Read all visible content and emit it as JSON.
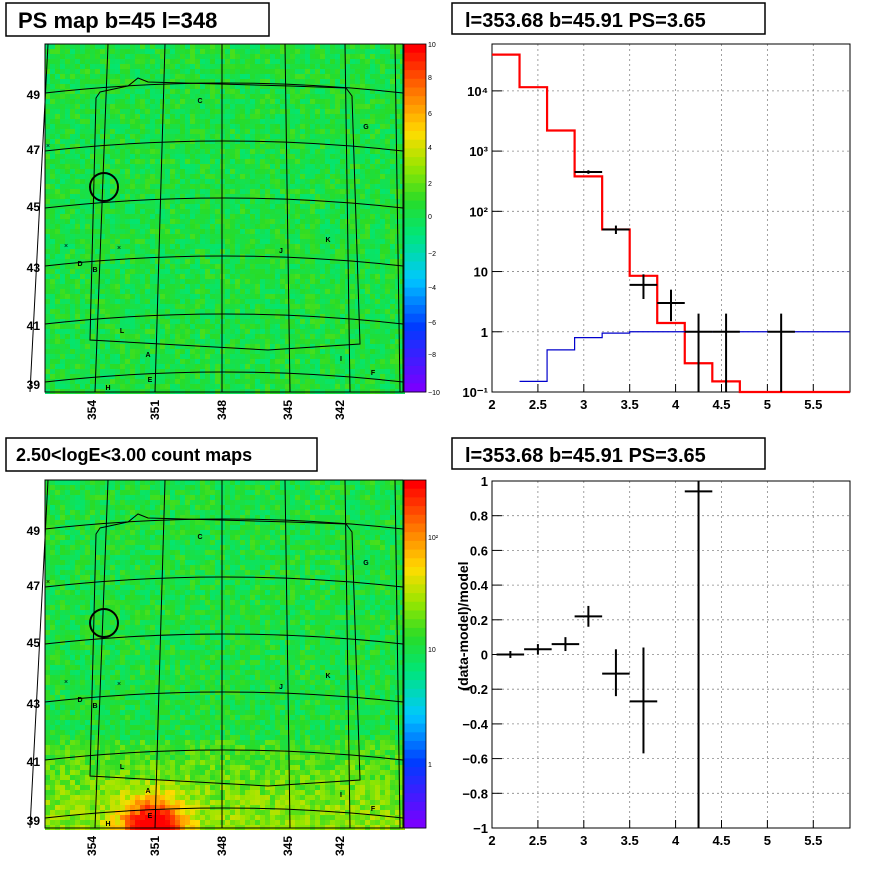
{
  "panels": {
    "map1_title": "PS map b=45 l=348",
    "spec_title": "l=353.68 b=45.91 PS=3.65",
    "map2_title": "2.50<logE<3.00 count maps",
    "resid_title": "l=353.68 b=45.91 PS=3.65",
    "resid_ylabel": "(data-model)/model"
  },
  "map_axes": {
    "b_labels": [
      "49",
      "47",
      "45",
      "43",
      "41",
      "39"
    ],
    "l_labels": [
      "354",
      "351",
      "348",
      "345",
      "342"
    ]
  },
  "map_markers": [
    "C",
    "G",
    "K",
    "J",
    "D",
    "B",
    "L",
    "A",
    "I",
    "F",
    "E",
    "H"
  ],
  "colorbar1_labels": [
    "10",
    "8",
    "6",
    "4",
    "2",
    "0",
    "−2",
    "−4",
    "−6",
    "−8",
    "−10"
  ],
  "colorbar2_labels": [
    "10²",
    "10",
    "1"
  ],
  "colors": {
    "model_red": "#ff0000",
    "bkg_blue": "#0000cc",
    "data": "#000000",
    "map_green": "#22dd33"
  },
  "chart_data": [
    {
      "type": "line",
      "title": "l=353.68 b=45.91 PS=3.65",
      "log_y": true,
      "xlim": [
        2,
        5.9
      ],
      "ylim": [
        0.1,
        60000
      ],
      "x_ticks": [
        "2",
        "2.5",
        "3",
        "3.5",
        "4",
        "4.5",
        "5",
        "5.5"
      ],
      "y_ticks": [
        "10⁻¹",
        "1",
        "10",
        "10²",
        "10³",
        "10⁴"
      ],
      "series": [
        {
          "style": "step",
          "color": "#ff0000",
          "edges": [
            2.0,
            2.3,
            2.6,
            2.9,
            3.2,
            3.5,
            3.8,
            4.1,
            4.4,
            4.7,
            5.0,
            5.3,
            5.9
          ],
          "values": [
            40000,
            11500,
            2200,
            380,
            50,
            8.5,
            1.4,
            0.3,
            0.15,
            0.1,
            0.1,
            0.1
          ]
        },
        {
          "style": "step",
          "color": "#0000cc",
          "edges": [
            2.3,
            2.6,
            2.9,
            3.2,
            3.5,
            3.8,
            4.1,
            4.4,
            4.7,
            5.0,
            5.3,
            5.9
          ],
          "values": [
            0.15,
            0.5,
            0.8,
            0.95,
            1.0,
            1.0,
            1.0,
            1.0,
            1.0,
            1.0,
            1.0
          ]
        },
        {
          "style": "errors",
          "color": "#000000",
          "points": [
            {
              "x": 3.05,
              "y": 450,
              "xerr": 0.15,
              "ylo": 420,
              "yhi": 480
            },
            {
              "x": 3.35,
              "y": 50,
              "xerr": 0.15,
              "ylo": 42,
              "yhi": 58
            },
            {
              "x": 3.65,
              "y": 6,
              "xerr": 0.15,
              "ylo": 3.5,
              "yhi": 9
            },
            {
              "x": 3.95,
              "y": 3,
              "xerr": 0.15,
              "ylo": 1.5,
              "yhi": 5
            },
            {
              "x": 4.25,
              "y": 1.0,
              "xerr": 0.15,
              "ylo": 0.1,
              "yhi": 2
            },
            {
              "x": 4.55,
              "y": 1.0,
              "xerr": 0.15,
              "ylo": 0.1,
              "yhi": 2
            },
            {
              "x": 5.15,
              "y": 1.0,
              "xerr": 0.15,
              "ylo": 0.1,
              "yhi": 2
            }
          ]
        }
      ]
    },
    {
      "type": "scatter",
      "title": "l=353.68 b=45.91 PS=3.65",
      "ylabel": "(data-model)/model",
      "xlim": [
        2,
        5.9
      ],
      "ylim": [
        -1,
        1
      ],
      "x_ticks": [
        "2",
        "2.5",
        "3",
        "3.5",
        "4",
        "4.5",
        "5",
        "5.5"
      ],
      "y_ticks": [
        "−1",
        "−0.8",
        "−0.6",
        "−0.4",
        "−0.2",
        "0",
        "0.2",
        "0.4",
        "0.6",
        "0.8",
        "1"
      ],
      "series": [
        {
          "style": "errors",
          "color": "#000000",
          "points": [
            {
              "x": 2.2,
              "y": 0.0,
              "xerr": 0.15,
              "ylo": -0.02,
              "yhi": 0.02
            },
            {
              "x": 2.5,
              "y": 0.03,
              "xerr": 0.15,
              "ylo": 0.0,
              "yhi": 0.06
            },
            {
              "x": 2.8,
              "y": 0.06,
              "xerr": 0.15,
              "ylo": 0.02,
              "yhi": 0.1
            },
            {
              "x": 3.05,
              "y": 0.22,
              "xerr": 0.15,
              "ylo": 0.16,
              "yhi": 0.28
            },
            {
              "x": 3.35,
              "y": -0.11,
              "xerr": 0.15,
              "ylo": -0.24,
              "yhi": 0.03
            },
            {
              "x": 3.65,
              "y": -0.27,
              "xerr": 0.15,
              "ylo": -0.57,
              "yhi": 0.04
            },
            {
              "x": 4.25,
              "y": 0.94,
              "xerr": 0.15,
              "ylo": -1.0,
              "yhi": 1.0
            }
          ]
        }
      ]
    }
  ]
}
